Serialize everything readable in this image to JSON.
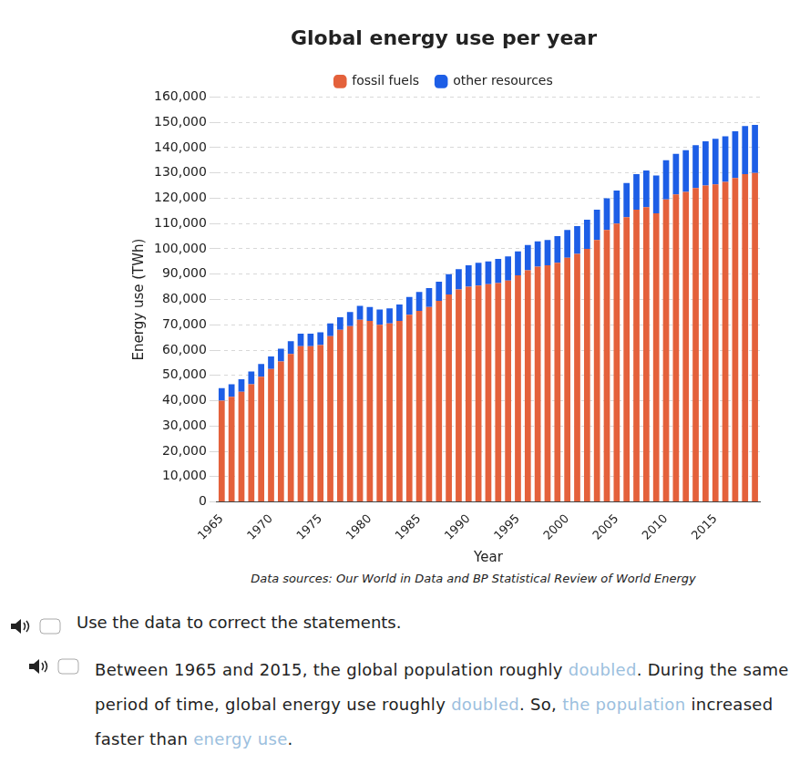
{
  "chart_data": {
    "type": "bar",
    "title": "Global energy use per year",
    "x_label": "Year",
    "y_label": "Energy use (TWh)",
    "annotations": [
      "Data sources: Our World in Data and BP Statistical Review of World Energy"
    ],
    "categories": [
      "1965",
      null,
      null,
      null,
      null,
      "1970",
      null,
      null,
      null,
      null,
      "1975",
      null,
      null,
      null,
      null,
      "1980",
      null,
      null,
      null,
      null,
      "1985",
      null,
      null,
      null,
      null,
      "1990",
      null,
      null,
      null,
      null,
      "1995",
      null,
      null,
      null,
      null,
      "2000",
      null,
      null,
      null,
      null,
      "2005",
      null,
      null,
      null,
      null,
      "2010",
      null,
      null,
      null,
      null,
      "2015",
      null,
      null,
      null,
      null
    ],
    "series": [
      {
        "name": "fossil fuels",
        "color": "#e4613b",
        "values": [
          40000,
          41500,
          43500,
          46500,
          49500,
          52500,
          55500,
          58500,
          61500,
          61500,
          62000,
          65500,
          68000,
          69500,
          72000,
          71500,
          70000,
          70500,
          71500,
          74000,
          75500,
          77000,
          79500,
          82000,
          84000,
          85000,
          85500,
          86000,
          86500,
          87500,
          89500,
          91500,
          93000,
          93500,
          94500,
          96500,
          98000,
          100000,
          103500,
          107500,
          110000,
          112500,
          115500,
          116500,
          114000,
          119500,
          121500,
          122500,
          124000,
          125000,
          125500,
          126500,
          128000,
          129500,
          130000
        ]
      },
      {
        "name": "other resources",
        "color": "#1d5ee6",
        "values": [
          5000,
          5000,
          5000,
          5000,
          5000,
          5000,
          5000,
          5000,
          5000,
          5000,
          5000,
          5000,
          5000,
          5500,
          5500,
          5500,
          6000,
          6000,
          6500,
          7000,
          7500,
          7500,
          7500,
          8000,
          8000,
          8500,
          9000,
          9000,
          9500,
          9500,
          9500,
          10000,
          10000,
          10000,
          10500,
          11000,
          11000,
          11500,
          12000,
          12500,
          13000,
          13500,
          14000,
          14500,
          15000,
          15500,
          16000,
          16500,
          17000,
          17500,
          18000,
          18000,
          18500,
          19000,
          19000
        ]
      }
    ],
    "stacked": true,
    "ylim": [
      0,
      160000
    ],
    "yticks": [
      0,
      {
        "value": 10000,
        "label": "10,000"
      },
      {
        "value": 20000,
        "label": "20,000"
      },
      {
        "value": 30000,
        "label": "30,000"
      },
      {
        "value": 40000,
        "label": "40,000"
      },
      {
        "value": 50000,
        "label": "50,000"
      },
      {
        "value": 60000,
        "label": "60,000"
      },
      {
        "value": 70000,
        "label": "70,000"
      },
      {
        "value": 80000,
        "label": "80,000"
      },
      {
        "value": 90000,
        "label": "90,000"
      },
      {
        "value": 100000,
        "label": "100,000"
      },
      {
        "value": 110000,
        "label": "110,000"
      },
      {
        "value": 120000,
        "label": "120,000"
      },
      {
        "value": 130000,
        "label": "130,000"
      },
      {
        "value": 140000,
        "label": "140,000"
      },
      {
        "value": 150000,
        "label": "150,000"
      },
      {
        "value": 160000,
        "label": "160,000"
      }
    ],
    "grid": true,
    "legend": "top"
  },
  "worksheet": {
    "instruction": "Use the data to correct the statements.",
    "statement": [
      {
        "text": "Between 1965 and 2015, the global population roughly ",
        "highlight": false
      },
      {
        "text": "doubled",
        "highlight": true
      },
      {
        "text": ". During the same period of time, global energy use roughly ",
        "highlight": false
      },
      {
        "text": "doubled",
        "highlight": true
      },
      {
        "text": ". So, ",
        "highlight": false
      },
      {
        "text": "the population",
        "highlight": true
      },
      {
        "text": " increased faster than ",
        "highlight": false
      },
      {
        "text": "energy use",
        "highlight": true
      },
      {
        "text": ".",
        "highlight": false
      }
    ]
  }
}
